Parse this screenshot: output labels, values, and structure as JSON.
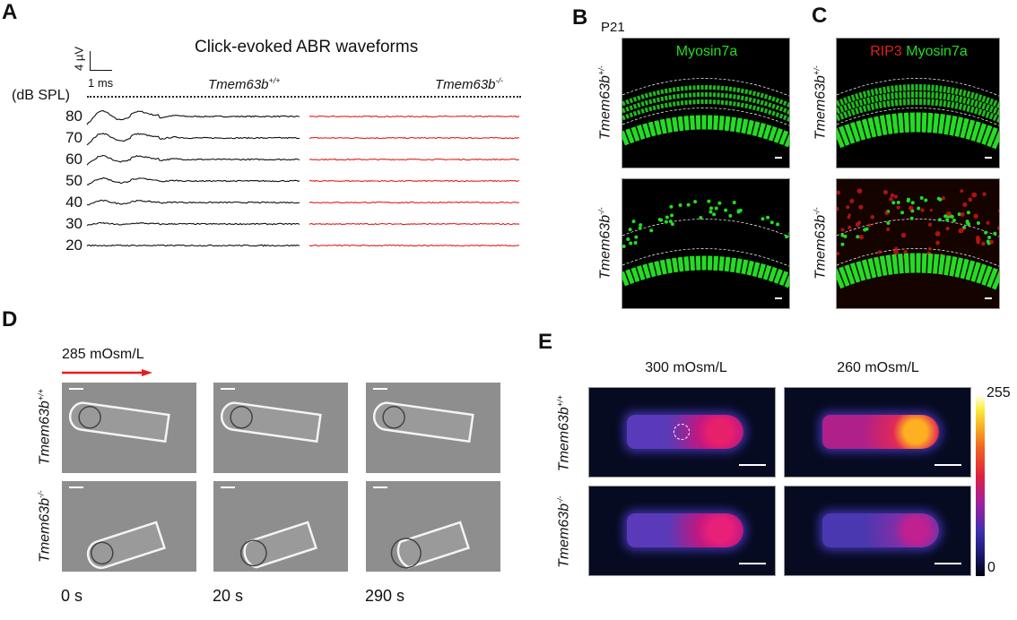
{
  "panels": {
    "A": {
      "letter": "A",
      "title": "Click-evoked ABR waveforms",
      "scale_y": "4 µV",
      "scale_x": "1 ms",
      "unit_label": "(dB SPL)",
      "genotype_wt": {
        "base": "Tmem63b",
        "sup": "+/+"
      },
      "genotype_ko": {
        "base": "Tmem63b",
        "sup": "-/-"
      },
      "levels": [
        "80",
        "70",
        "60",
        "50",
        "40",
        "30",
        "20"
      ],
      "colors": {
        "wt": "#111111",
        "ko": "#e32020"
      }
    },
    "B": {
      "letter": "B",
      "age": "P21",
      "stain": "Myosin7a",
      "row_labels": [
        {
          "base": "Tmem63b",
          "sup": "+/-"
        },
        {
          "base": "Tmem63b",
          "sup": "-/-"
        }
      ],
      "colors": {
        "stain": "#22dd22"
      }
    },
    "C": {
      "letter": "C",
      "stain_red": "RIP3",
      "stain_green": "Myosin7a",
      "row_labels": [
        {
          "base": "Tmem63b",
          "sup": "+/-"
        },
        {
          "base": "Tmem63b",
          "sup": "-/-"
        }
      ],
      "colors": {
        "red": "#e02020",
        "green": "#22dd22"
      }
    },
    "D": {
      "letter": "D",
      "condition": "285 mOsm/L",
      "row_labels": [
        {
          "base": "Tmem63b",
          "sup": "+/+"
        },
        {
          "base": "Tmem63b",
          "sup": "-/-"
        }
      ],
      "times": [
        "0 s",
        "20 s",
        "290 s"
      ],
      "colors": {
        "arrow": "#e81e1e"
      }
    },
    "E": {
      "letter": "E",
      "columns": [
        "300 mOsm/L",
        "260 mOsm/L"
      ],
      "row_labels": [
        {
          "base": "Tmem63b",
          "sup": "+/+"
        },
        {
          "base": "Tmem63b",
          "sup": "-/-"
        }
      ],
      "colorbar": {
        "max": "255",
        "min": "0",
        "colormap": "fire"
      }
    }
  }
}
